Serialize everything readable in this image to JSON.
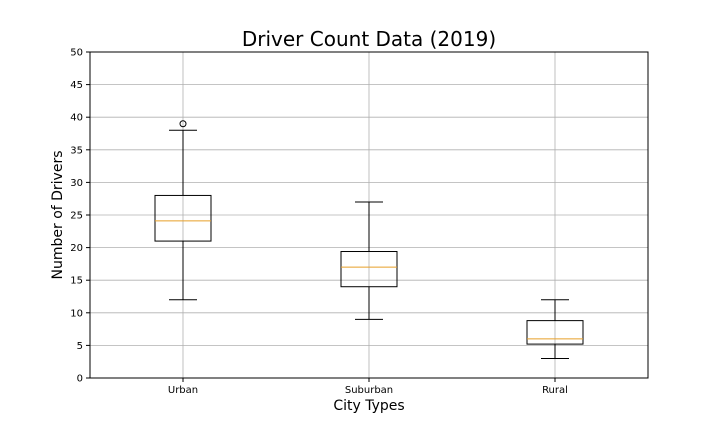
{
  "chart_data": {
    "type": "box",
    "title": "Driver Count Data (2019)",
    "xlabel": "City Types",
    "ylabel": "Number of Drivers",
    "ylim": [
      0,
      50
    ],
    "yticks": [
      "0",
      "5",
      "10",
      "15",
      "20",
      "25",
      "30",
      "35",
      "40",
      "45",
      "50"
    ],
    "grid": true,
    "median_color": "#e69f28",
    "categories": [
      "Urban",
      "Suburban",
      "Rural"
    ],
    "boxes": [
      {
        "name": "Urban",
        "whisker_low": 12,
        "q1": 21,
        "median": 24.1,
        "q3": 28,
        "whisker_high": 38,
        "outliers": [
          39
        ]
      },
      {
        "name": "Suburban",
        "whisker_low": 9,
        "q1": 14,
        "median": 17,
        "q3": 19.4,
        "whisker_high": 27,
        "outliers": []
      },
      {
        "name": "Rural",
        "whisker_low": 3,
        "q1": 5.2,
        "median": 6,
        "q3": 8.8,
        "whisker_high": 12,
        "outliers": []
      }
    ]
  }
}
